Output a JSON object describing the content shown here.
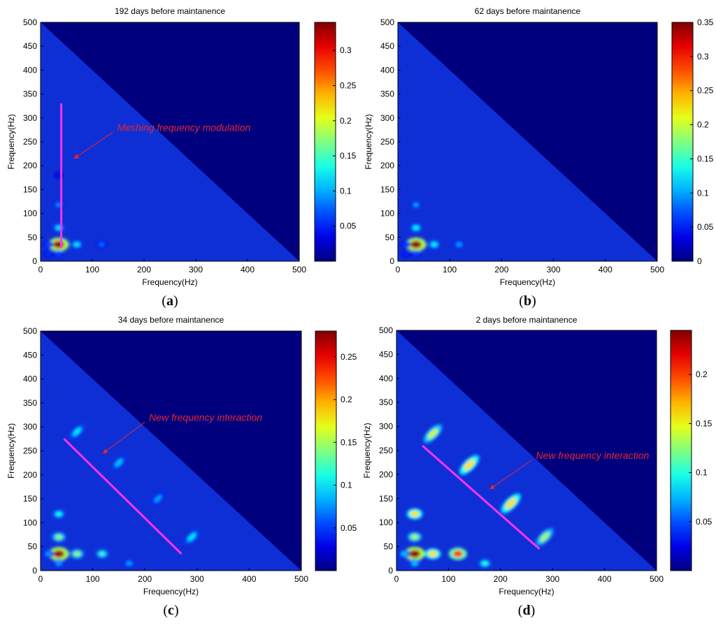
{
  "chart_data": [
    {
      "type": "heatmap",
      "panel_label": "a",
      "title": "192 days before maintanence",
      "xlabel": "Frequency(Hz)",
      "ylabel": "Frequency(Hz)",
      "xlim": [
        0,
        500
      ],
      "ylim": [
        0,
        500
      ],
      "x_ticks": [
        "0",
        "100",
        "200",
        "300",
        "400",
        "500"
      ],
      "y_ticks": [
        "0",
        "50",
        "100",
        "150",
        "200",
        "250",
        "300",
        "350",
        "400",
        "450",
        "500"
      ],
      "colorbar": {
        "range": [
          0,
          0.34
        ],
        "ticks": [
          "0.05",
          "0.1",
          "0.15",
          "0.2",
          "0.25",
          "0.3"
        ]
      },
      "peaks": [
        {
          "x": 35,
          "y": 35,
          "value": 0.33
        },
        {
          "x": 35,
          "y": 70,
          "value": 0.12
        },
        {
          "x": 35,
          "y": 118,
          "value": 0.09
        },
        {
          "x": 70,
          "y": 35,
          "value": 0.12
        },
        {
          "x": 118,
          "y": 35,
          "value": 0.08
        },
        {
          "x": 15,
          "y": 35,
          "value": 0.07
        },
        {
          "x": 35,
          "y": 15,
          "value": 0.07
        },
        {
          "x": 15,
          "y": 15,
          "value": 0.06
        },
        {
          "x": 35,
          "y": 180,
          "value": 0.05
        }
      ],
      "annotation": {
        "text": "Meshing frequency modulation",
        "marker": {
          "type": "line",
          "from": [
            40,
            330
          ],
          "to": [
            40,
            28
          ]
        },
        "arrow": {
          "from": [
            140,
            270
          ],
          "to": [
            65,
            215
          ]
        }
      }
    },
    {
      "type": "heatmap",
      "panel_label": "b",
      "title": "62 days before maintanence",
      "xlabel": "Frequency(Hz)",
      "ylabel": "Frequency(Hz)",
      "xlim": [
        0,
        500
      ],
      "ylim": [
        0,
        500
      ],
      "x_ticks": [
        "0",
        "100",
        "200",
        "300",
        "400",
        "500"
      ],
      "y_ticks": [
        "0",
        "50",
        "100",
        "150",
        "200",
        "250",
        "300",
        "350",
        "400",
        "450",
        "500"
      ],
      "colorbar": {
        "range": [
          0,
          0.35
        ],
        "ticks": [
          "0",
          "0.05",
          "0.1",
          "0.15",
          "0.2",
          "0.25",
          "0.3",
          "0.35"
        ]
      },
      "peaks": [
        {
          "x": 35,
          "y": 35,
          "value": 0.34
        },
        {
          "x": 35,
          "y": 70,
          "value": 0.13
        },
        {
          "x": 35,
          "y": 118,
          "value": 0.1
        },
        {
          "x": 70,
          "y": 35,
          "value": 0.13
        },
        {
          "x": 118,
          "y": 35,
          "value": 0.1
        },
        {
          "x": 15,
          "y": 35,
          "value": 0.07
        },
        {
          "x": 35,
          "y": 15,
          "value": 0.07
        },
        {
          "x": 15,
          "y": 15,
          "value": 0.06
        }
      ],
      "annotation": null
    },
    {
      "type": "heatmap",
      "panel_label": "c",
      "title": "34 days before maintanence",
      "xlabel": "Frequency(Hz)",
      "ylabel": "Frequency(Hz)",
      "xlim": [
        0,
        500
      ],
      "ylim": [
        0,
        500
      ],
      "x_ticks": [
        "0",
        "100",
        "200",
        "300",
        "400",
        "500"
      ],
      "y_ticks": [
        "0",
        "50",
        "100",
        "150",
        "200",
        "250",
        "300",
        "350",
        "400",
        "450",
        "500"
      ],
      "colorbar": {
        "range": [
          0,
          0.28
        ],
        "ticks": [
          "0.05",
          "0.1",
          "0.15",
          "0.2",
          "0.25"
        ]
      },
      "peaks": [
        {
          "x": 35,
          "y": 35,
          "value": 0.27
        },
        {
          "x": 35,
          "y": 70,
          "value": 0.14
        },
        {
          "x": 35,
          "y": 118,
          "value": 0.11
        },
        {
          "x": 70,
          "y": 35,
          "value": 0.14
        },
        {
          "x": 118,
          "y": 35,
          "value": 0.12
        },
        {
          "x": 15,
          "y": 35,
          "value": 0.08
        },
        {
          "x": 35,
          "y": 15,
          "value": 0.08
        },
        {
          "x": 70,
          "y": 290,
          "value": 0.1
        },
        {
          "x": 150,
          "y": 225,
          "value": 0.09
        },
        {
          "x": 225,
          "y": 150,
          "value": 0.08
        },
        {
          "x": 290,
          "y": 70,
          "value": 0.1
        },
        {
          "x": 170,
          "y": 15,
          "value": 0.08
        }
      ],
      "annotation": {
        "text": "New frequency interaction",
        "marker": {
          "type": "line",
          "from": [
            45,
            275
          ],
          "to": [
            270,
            35
          ]
        },
        "arrow": {
          "from": [
            200,
            310
          ],
          "to": [
            120,
            245
          ]
        }
      }
    },
    {
      "type": "heatmap",
      "panel_label": "d",
      "title": "2 days before maintanence",
      "xlabel": "Frequency(Hz)",
      "ylabel": "Frequency(Hz)",
      "xlim": [
        0,
        500
      ],
      "ylim": [
        0,
        500
      ],
      "x_ticks": [
        "0",
        "100",
        "200",
        "300",
        "400",
        "500"
      ],
      "y_ticks": [
        "0",
        "50",
        "100",
        "150",
        "200",
        "250",
        "300",
        "350",
        "400",
        "450",
        "500"
      ],
      "colorbar": {
        "range": [
          0,
          0.245
        ],
        "ticks": [
          "0.05",
          "0.1",
          "0.15",
          "0.2"
        ]
      },
      "peaks": [
        {
          "x": 35,
          "y": 35,
          "value": 0.24
        },
        {
          "x": 35,
          "y": 70,
          "value": 0.13
        },
        {
          "x": 35,
          "y": 118,
          "value": 0.16
        },
        {
          "x": 70,
          "y": 35,
          "value": 0.16
        },
        {
          "x": 118,
          "y": 35,
          "value": 0.2
        },
        {
          "x": 15,
          "y": 35,
          "value": 0.08
        },
        {
          "x": 35,
          "y": 15,
          "value": 0.08
        },
        {
          "x": 70,
          "y": 285,
          "value": 0.14
        },
        {
          "x": 140,
          "y": 220,
          "value": 0.16
        },
        {
          "x": 220,
          "y": 140,
          "value": 0.16
        },
        {
          "x": 285,
          "y": 70,
          "value": 0.13
        },
        {
          "x": 170,
          "y": 15,
          "value": 0.1
        }
      ],
      "annotation": {
        "text": "New frequency interaction",
        "marker": {
          "type": "line",
          "from": [
            50,
            260
          ],
          "to": [
            275,
            45
          ]
        },
        "arrow": {
          "from": [
            260,
            230
          ],
          "to": [
            180,
            170
          ]
        }
      }
    }
  ]
}
